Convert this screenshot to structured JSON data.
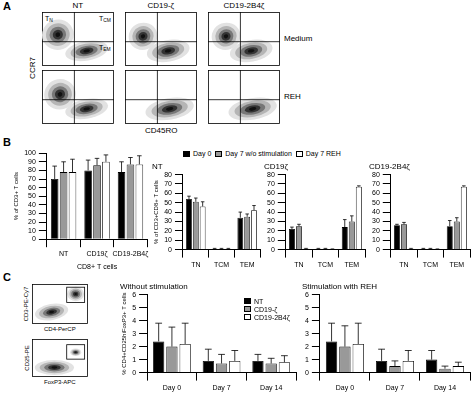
{
  "panel_labels": [
    "A",
    "B",
    "C"
  ],
  "flow_a": {
    "columns": [
      "NT",
      "CD19-ζ",
      "CD19-2B4ζ"
    ],
    "rows": [
      "Medium",
      "REH"
    ],
    "x_label": "CD45RO",
    "y_label": "CCR7",
    "quadrants": [
      "TN",
      "TCM",
      "TEM"
    ]
  },
  "flow_c": {
    "plots": [
      {
        "x_label": "CD4-PerCP",
        "y_label": "CD3-PE-Cy7"
      },
      {
        "x_label": "FoxP3-APC",
        "y_label": "CD25-PE"
      }
    ]
  },
  "chart_data": [
    {
      "type": "bar",
      "x_label": "CD8+ T cells",
      "y_label": "% of CD3+ T cells",
      "categories": [
        "NT",
        "CD19ζ",
        "CD19-2B4ζ"
      ],
      "series": [
        {
          "name": "Day 0",
          "color": "#000000",
          "values": [
            70,
            80,
            78
          ],
          "errors": [
            15,
            12,
            12
          ]
        },
        {
          "name": "Day 7 w/o stimulation",
          "color": "#999999",
          "values": [
            78,
            86,
            87
          ],
          "errors": [
            12,
            8,
            8
          ]
        },
        {
          "name": "Day 7 REH",
          "color": "#ffffff",
          "values": [
            78,
            90,
            87
          ],
          "errors": [
            15,
            8,
            10
          ]
        }
      ],
      "ylim": [
        0,
        100
      ],
      "yticks": [
        0,
        10,
        20,
        30,
        40,
        50,
        60,
        70,
        80,
        90,
        100
      ],
      "grid": false
    },
    {
      "type": "bar",
      "title": "NT",
      "y_label": "% of CD3+CD8+ T cells",
      "legend": "top",
      "categories": [
        "TN",
        "TCM",
        "TEM"
      ],
      "series": [
        {
          "name": "Day 0",
          "color": "#000000",
          "values": [
            54,
            1,
            34
          ],
          "errors": [
            3,
            0.3,
            6
          ]
        },
        {
          "name": "Day 7 w/o stimulation",
          "color": "#999999",
          "values": [
            51,
            1,
            35
          ],
          "errors": [
            4,
            0.3,
            3
          ]
        },
        {
          "name": "Day 7 REH",
          "color": "#ffffff",
          "values": [
            46,
            1,
            42
          ],
          "errors": [
            5,
            0.3,
            5
          ]
        }
      ],
      "ylim": [
        0,
        80
      ],
      "yticks": [
        0,
        10,
        20,
        30,
        40,
        50,
        60,
        70,
        80
      ],
      "grid": false
    },
    {
      "type": "bar",
      "title": "CD19ζ",
      "categories": [
        "TN",
        "TCM",
        "TEM"
      ],
      "series": [
        {
          "name": "Day 0",
          "color": "#000000",
          "values": [
            22,
            1,
            24
          ],
          "errors": [
            2,
            0.3,
            8
          ]
        },
        {
          "name": "Day 7 w/o stimulation",
          "color": "#999999",
          "values": [
            25,
            1,
            30
          ],
          "errors": [
            2,
            0.3,
            6
          ]
        },
        {
          "name": "Day 7 REH",
          "color": "#ffffff",
          "values": [
            1,
            0.5,
            67
          ],
          "errors": [
            0.3,
            0.2,
            1
          ]
        }
      ],
      "ylim": [
        0,
        80
      ],
      "yticks": [
        0,
        10,
        20,
        30,
        40,
        50,
        60,
        70,
        80
      ],
      "grid": false
    },
    {
      "type": "bar",
      "title": "CD19-2B4ζ",
      "categories": [
        "TN",
        "TCM",
        "TEM"
      ],
      "series": [
        {
          "name": "Day 0",
          "color": "#000000",
          "values": [
            26,
            1,
            25
          ],
          "errors": [
            1,
            0.3,
            6
          ]
        },
        {
          "name": "Day 7 w/o stimulation",
          "color": "#999999",
          "values": [
            27,
            1,
            30
          ],
          "errors": [
            2,
            0.3,
            4
          ]
        },
        {
          "name": "Day 7 REH",
          "color": "#ffffff",
          "values": [
            1,
            0.5,
            67
          ],
          "errors": [
            0.3,
            0.2,
            1
          ]
        }
      ],
      "ylim": [
        0,
        80
      ],
      "yticks": [
        0,
        10,
        20,
        30,
        40,
        50,
        60,
        70,
        80
      ],
      "grid": false
    },
    {
      "type": "bar",
      "title": "Without stimulation",
      "y_label": "% CD4+CD25hiFoxP3+ T cells",
      "legend": "top-right",
      "categories": [
        "Day 0",
        "Day 7",
        "Day 14"
      ],
      "series": [
        {
          "name": "NT",
          "color": "#000000",
          "values": [
            2.4,
            0.9,
            0.9
          ],
          "errors": [
            1.4,
            0.9,
            0.5
          ]
        },
        {
          "name": "CD19-ζ",
          "color": "#999999",
          "values": [
            2.0,
            0.7,
            0.7
          ],
          "errors": [
            1.5,
            0.7,
            0.4
          ]
        },
        {
          "name": "CD19-2B4ζ",
          "color": "#ffffff",
          "values": [
            2.2,
            0.9,
            0.8
          ],
          "errors": [
            1.6,
            0.8,
            0.5
          ]
        }
      ],
      "ylim": [
        0,
        6
      ],
      "yticks": [
        0,
        1,
        2,
        3,
        4,
        5,
        6
      ],
      "grid": false
    },
    {
      "type": "bar",
      "title": "Stimulation with REH",
      "categories": [
        "Day 0",
        "Day 7",
        "Day 14"
      ],
      "series": [
        {
          "name": "NT",
          "color": "#000000",
          "values": [
            2.4,
            0.9,
            1.0
          ],
          "errors": [
            1.4,
            0.9,
            0.7
          ]
        },
        {
          "name": "CD19-ζ",
          "color": "#999999",
          "values": [
            2.0,
            0.5,
            0.3
          ],
          "errors": [
            1.6,
            0.4,
            0.2
          ]
        },
        {
          "name": "CD19-2B4ζ",
          "color": "#ffffff",
          "values": [
            2.2,
            0.9,
            0.5
          ],
          "errors": [
            1.6,
            0.8,
            0.3
          ]
        }
      ],
      "ylim": [
        0,
        6
      ],
      "yticks": [
        0,
        1,
        2,
        3,
        4,
        5,
        6
      ],
      "grid": false
    }
  ]
}
